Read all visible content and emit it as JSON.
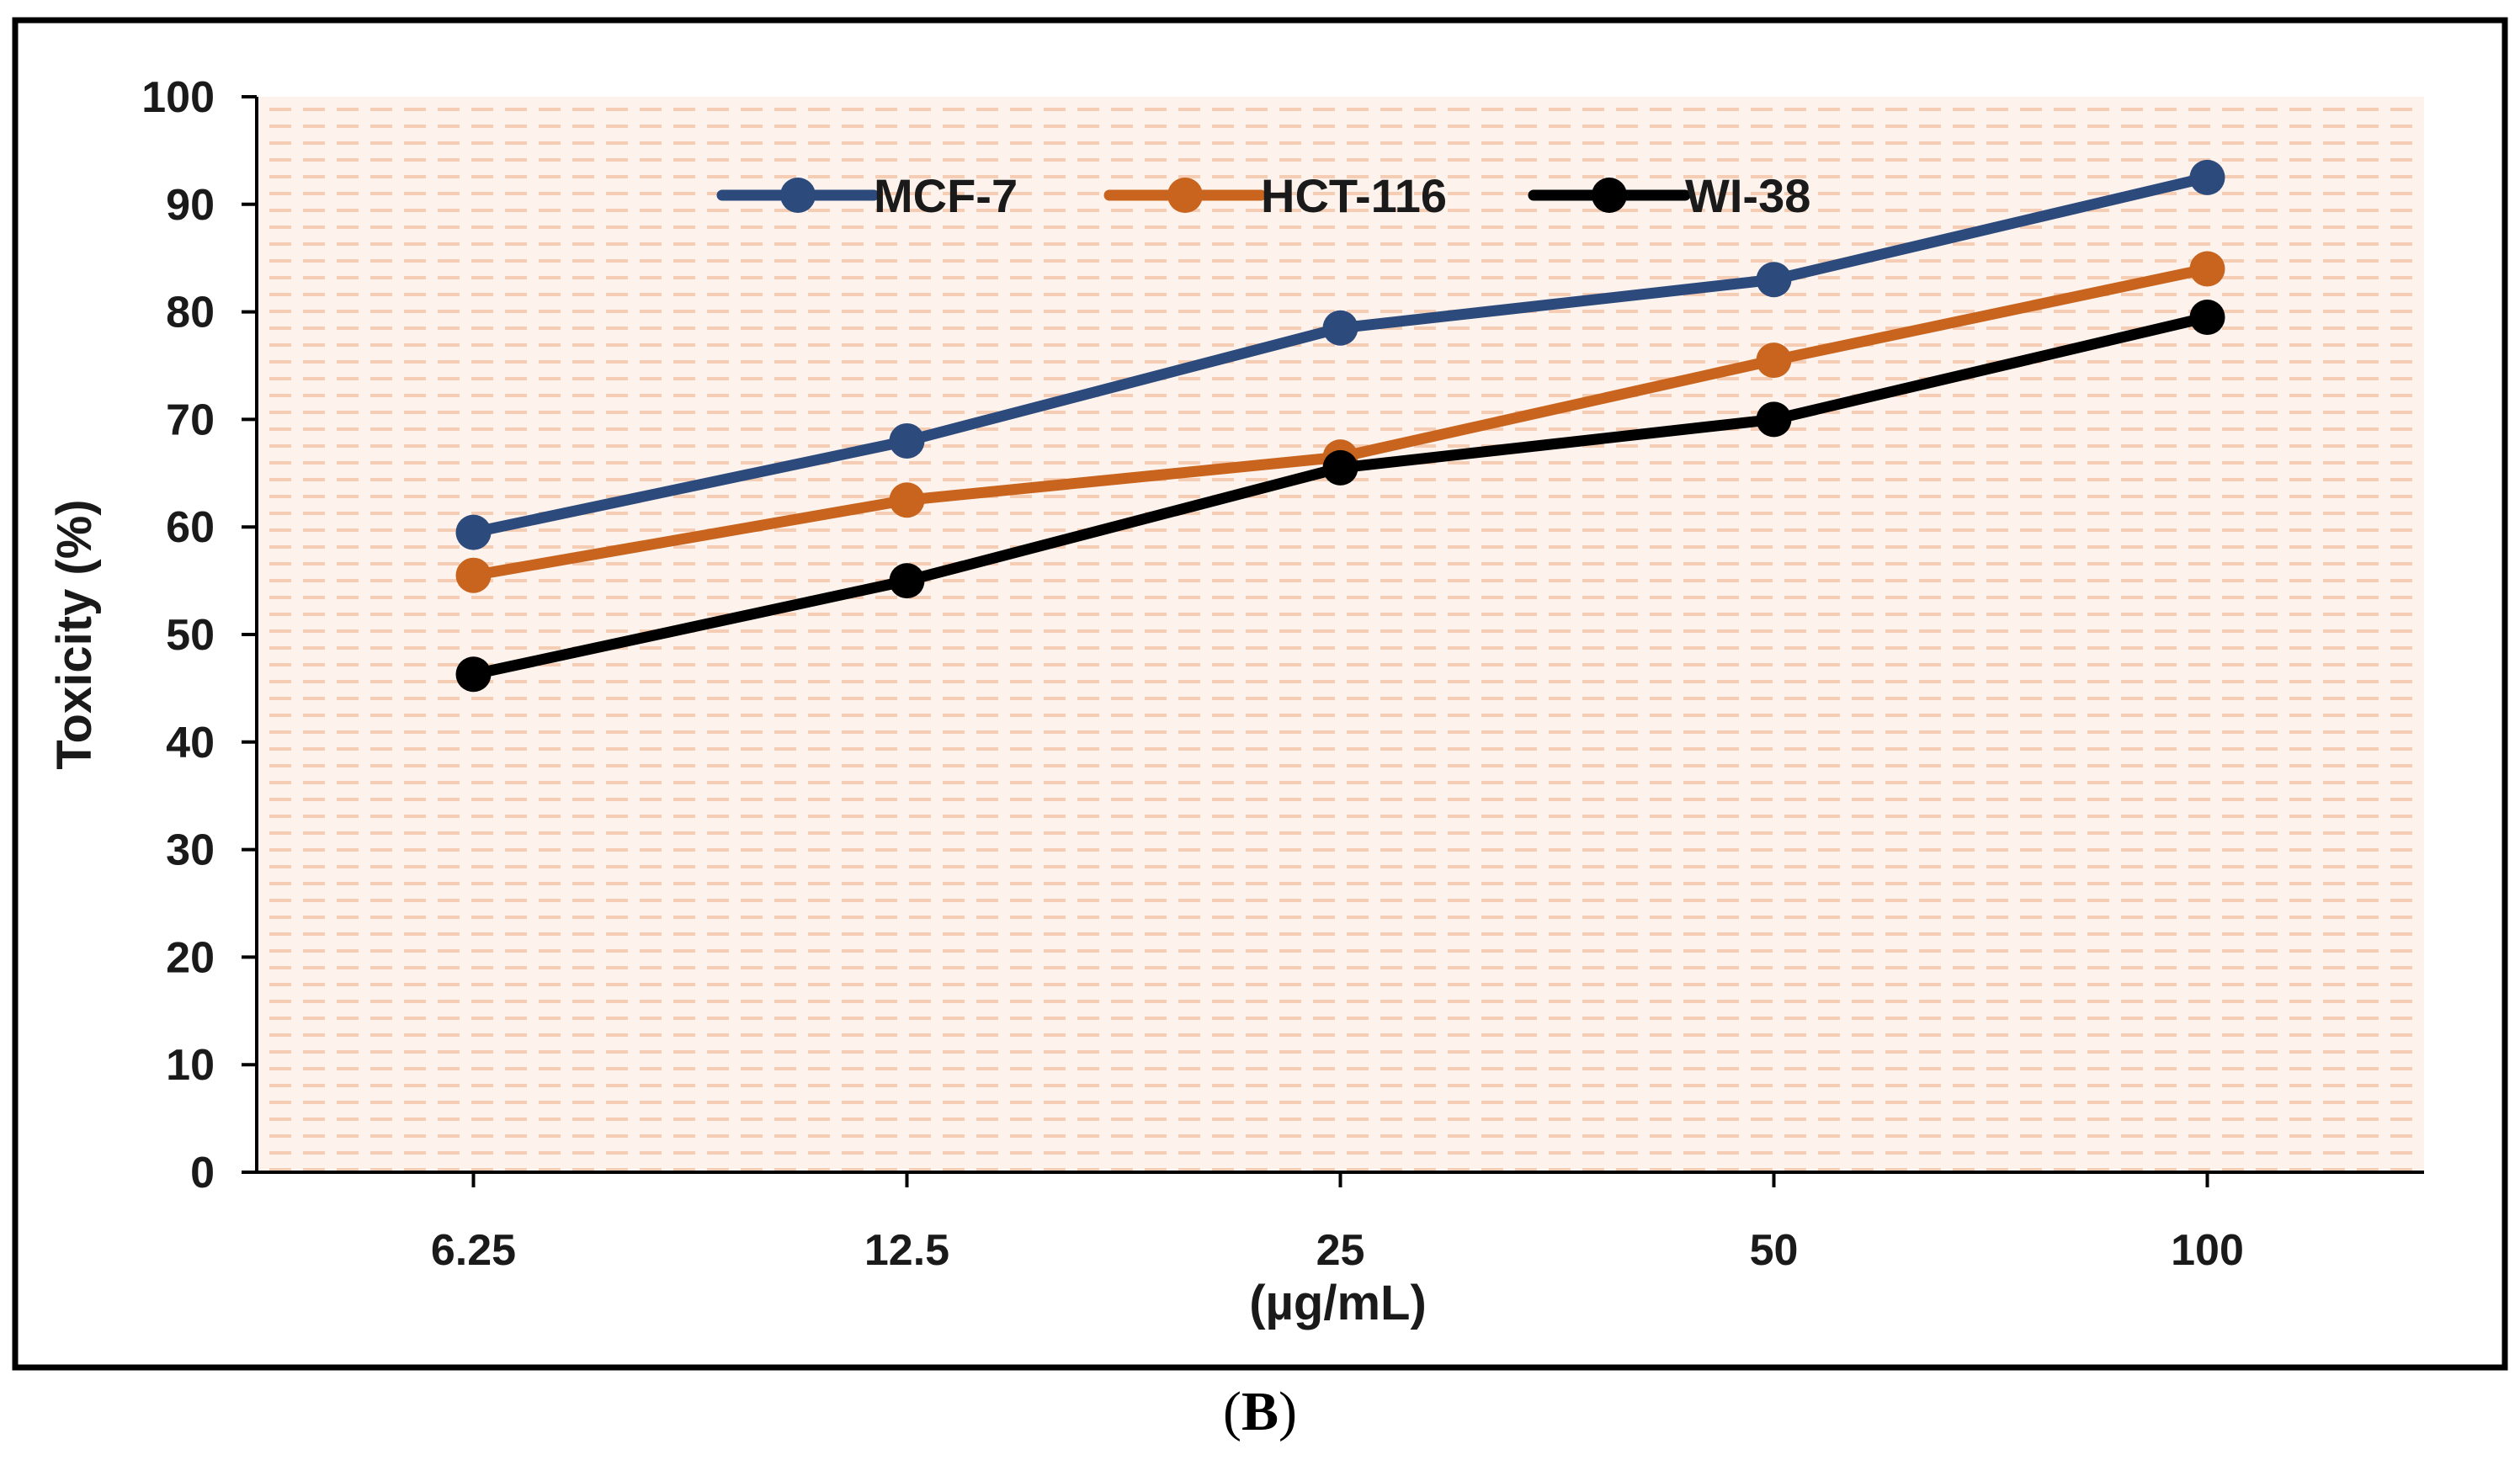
{
  "chart_data": {
    "type": "line",
    "title": "",
    "xlabel": "(µg/mL)",
    "ylabel": "Toxicity (%)",
    "categories": [
      "6.25",
      "12.5",
      "25",
      "50",
      "100"
    ],
    "ylim": [
      0,
      100
    ],
    "yticks": [
      0,
      10,
      20,
      30,
      40,
      50,
      60,
      70,
      80,
      90,
      100
    ],
    "grid": false,
    "legend": "top-center",
    "series": [
      {
        "name": "MCF-7",
        "color": "#2c4a7c",
        "values": [
          59.5,
          68,
          78.5,
          83,
          92.5
        ]
      },
      {
        "name": "HCT-116",
        "color": "#c8641e",
        "values": [
          55.5,
          62.5,
          66.5,
          75.5,
          84
        ]
      },
      {
        "name": "WI-38",
        "color": "#000000",
        "values": [
          46.3,
          55,
          65.5,
          70,
          79.5
        ]
      }
    ]
  },
  "caption": {
    "open": "(",
    "letter": "B",
    "close": ")"
  },
  "colors": {
    "plot_bg": "#fdf3ec",
    "plot_stripe": "#f5cdb4",
    "frame": "#000000"
  }
}
